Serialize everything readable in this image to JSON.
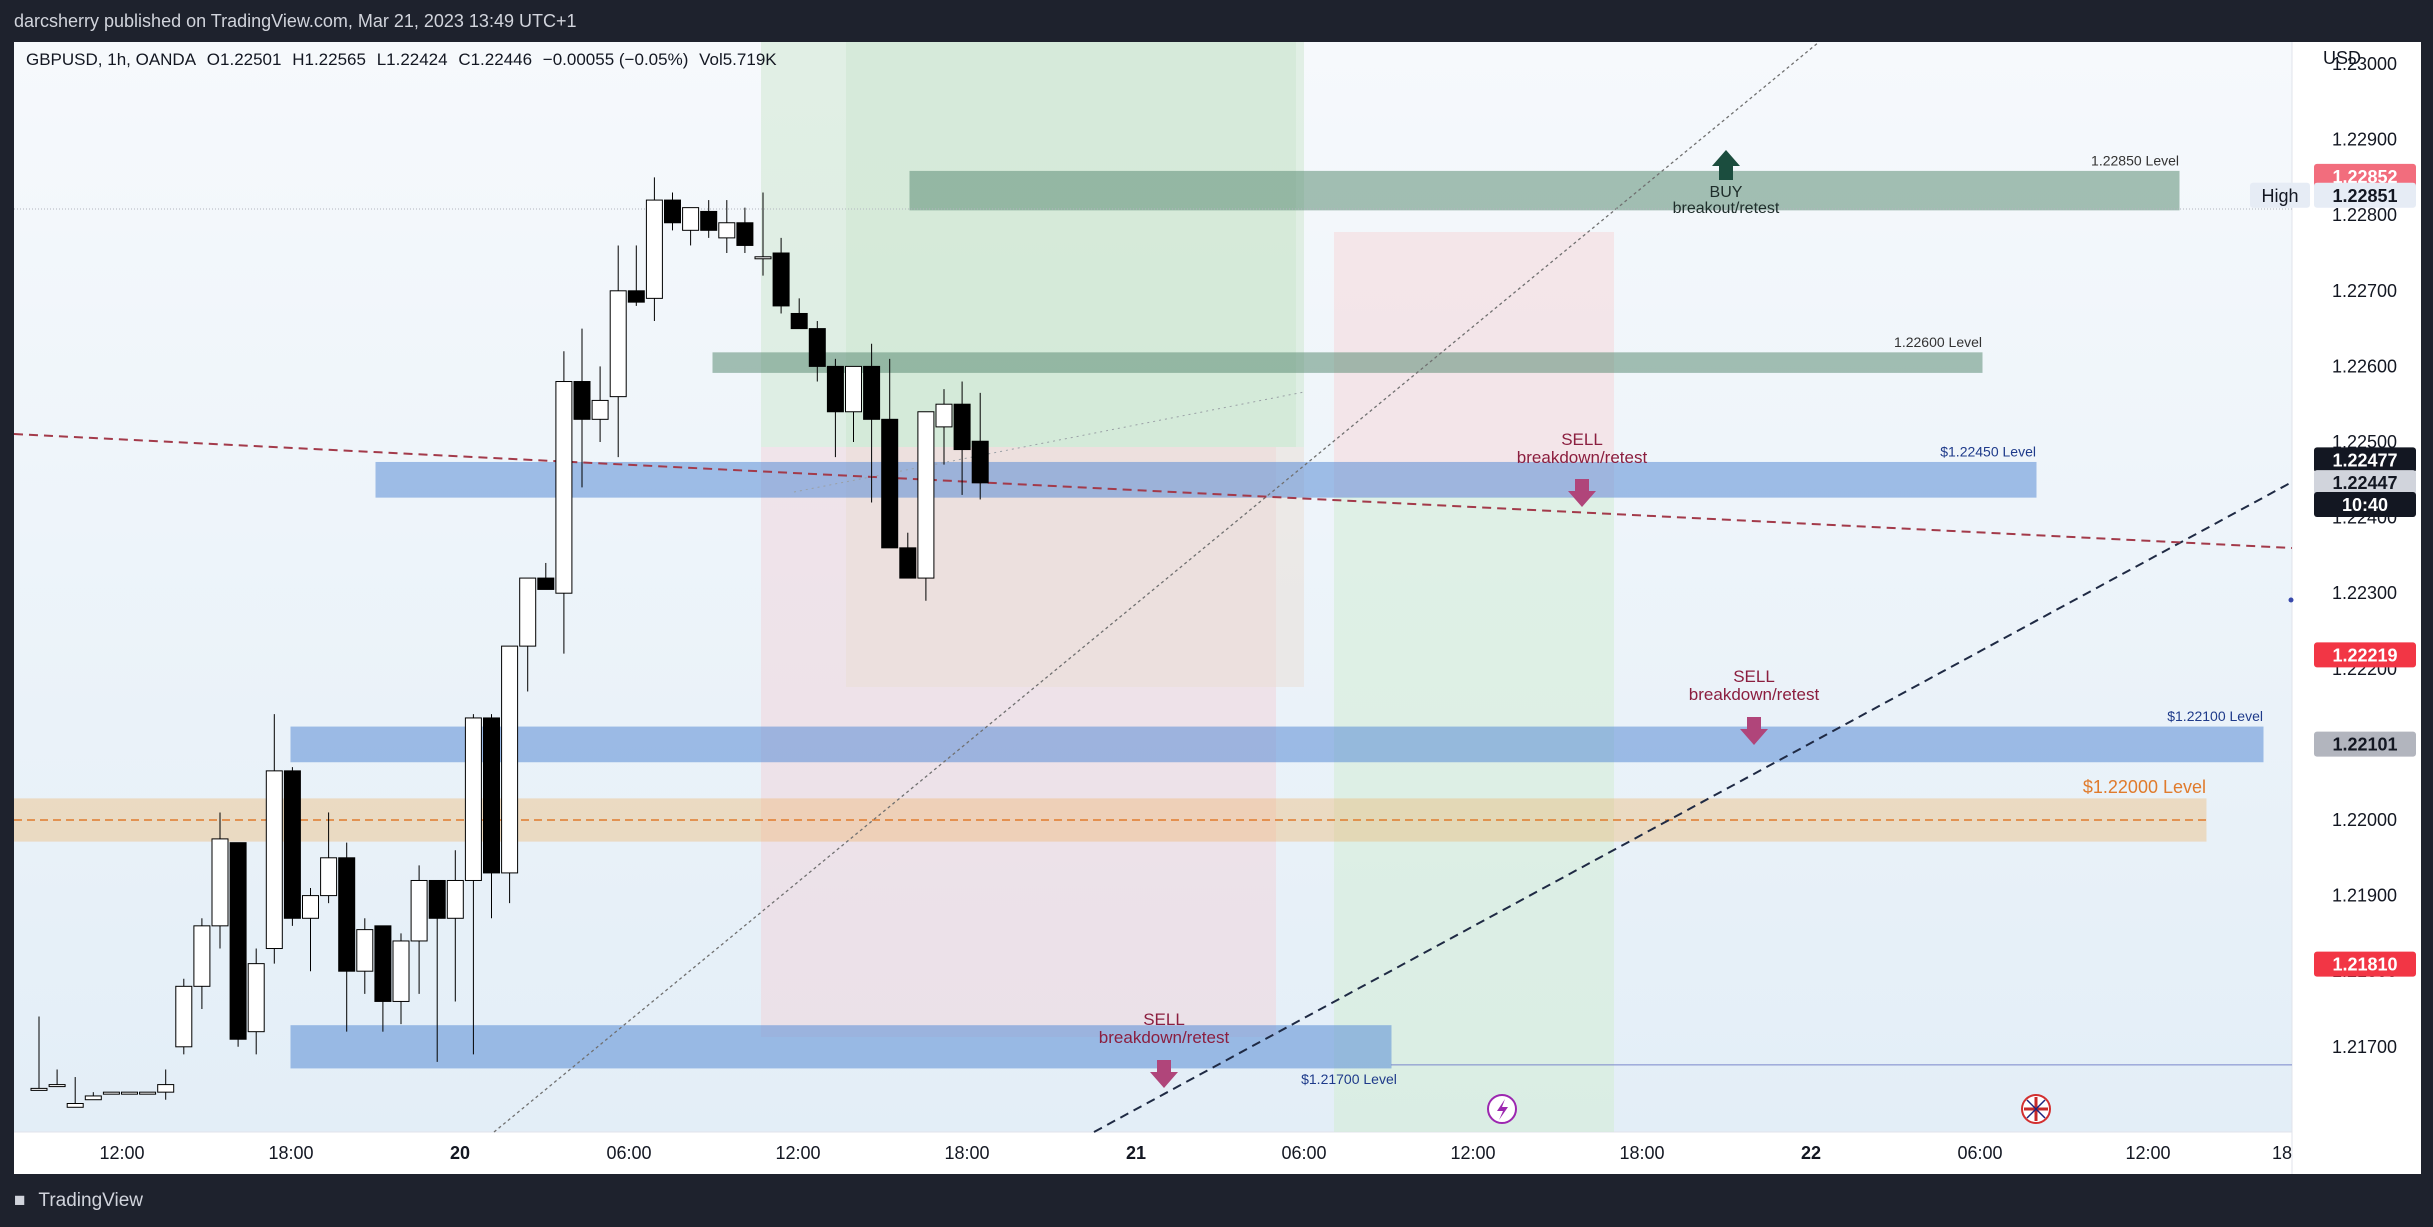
{
  "header": {
    "publish_line": "darcsherry published on TradingView.com, Mar 21, 2023 13:49 UTC+1"
  },
  "legend": {
    "symbol": "GBPUSD, 1h, OANDA",
    "open": "O1.22501",
    "high": "H1.22565",
    "low": "L1.22424",
    "close": "C1.22446",
    "change": "−0.00055 (−0.05%)",
    "volume": "Vol5.719K"
  },
  "footer": {
    "brand": "TradingView"
  },
  "chart_data": {
    "type": "candlestick",
    "currency": "USD",
    "y_range": [
      1.2164,
      1.2315
    ],
    "y_ticks": [
      "1.23000",
      "1.22900",
      "1.22800",
      "1.22700",
      "1.22600",
      "1.22500",
      "1.22400",
      "1.22300",
      "1.22200",
      "1.22100",
      "1.22000",
      "1.21900",
      "1.21800",
      "1.21700"
    ],
    "x_ticks": [
      "12:00",
      "18:00",
      "20",
      "06:00",
      "12:00",
      "18:00",
      "21",
      "06:00",
      "12:00",
      "18:00",
      "22",
      "06:00",
      "12:00",
      "18"
    ],
    "x_ticks_bold": [
      "20",
      "21",
      "22"
    ],
    "candles": [
      {
        "o": 1.21645,
        "h": 1.2174,
        "l": 1.21645,
        "c": 1.21645
      },
      {
        "o": 1.2165,
        "h": 1.2167,
        "l": 1.2165,
        "c": 1.2165
      },
      {
        "o": 1.2162,
        "h": 1.2166,
        "l": 1.2162,
        "c": 1.21625
      },
      {
        "o": 1.2163,
        "h": 1.2164,
        "l": 1.2163,
        "c": 1.21635
      },
      {
        "o": 1.2164,
        "h": 1.2164,
        "l": 1.2164,
        "c": 1.2164
      },
      {
        "o": 1.2164,
        "h": 1.2164,
        "l": 1.2164,
        "c": 1.2164
      },
      {
        "o": 1.2164,
        "h": 1.2164,
        "l": 1.2164,
        "c": 1.2164
      },
      {
        "o": 1.2164,
        "h": 1.2167,
        "l": 1.2163,
        "c": 1.2165
      },
      {
        "o": 1.217,
        "h": 1.2179,
        "l": 1.2169,
        "c": 1.2178
      },
      {
        "o": 1.2178,
        "h": 1.2187,
        "l": 1.2175,
        "c": 1.2186
      },
      {
        "o": 1.2186,
        "h": 1.2201,
        "l": 1.2183,
        "c": 1.21975
      },
      {
        "o": 1.2197,
        "h": 1.2197,
        "l": 1.217,
        "c": 1.2171
      },
      {
        "o": 1.2172,
        "h": 1.2183,
        "l": 1.2169,
        "c": 1.2181
      },
      {
        "o": 1.2183,
        "h": 1.2214,
        "l": 1.2181,
        "c": 1.22065
      },
      {
        "o": 1.22065,
        "h": 1.2207,
        "l": 1.2186,
        "c": 1.2187
      },
      {
        "o": 1.2187,
        "h": 1.2191,
        "l": 1.218,
        "c": 1.219
      },
      {
        "o": 1.219,
        "h": 1.2201,
        "l": 1.2189,
        "c": 1.2195
      },
      {
        "o": 1.2195,
        "h": 1.2197,
        "l": 1.2172,
        "c": 1.218
      },
      {
        "o": 1.218,
        "h": 1.2187,
        "l": 1.2177,
        "c": 1.21855
      },
      {
        "o": 1.2186,
        "h": 1.2186,
        "l": 1.2172,
        "c": 1.2176
      },
      {
        "o": 1.2176,
        "h": 1.2185,
        "l": 1.2173,
        "c": 1.2184
      },
      {
        "o": 1.2184,
        "h": 1.2194,
        "l": 1.2177,
        "c": 1.2192
      },
      {
        "o": 1.2192,
        "h": 1.2192,
        "l": 1.2168,
        "c": 1.2187
      },
      {
        "o": 1.2187,
        "h": 1.2196,
        "l": 1.2176,
        "c": 1.2192
      },
      {
        "o": 1.2192,
        "h": 1.2214,
        "l": 1.2169,
        "c": 1.22135
      },
      {
        "o": 1.22135,
        "h": 1.2214,
        "l": 1.2187,
        "c": 1.2193
      },
      {
        "o": 1.2193,
        "h": 1.2223,
        "l": 1.2189,
        "c": 1.2223
      },
      {
        "o": 1.2223,
        "h": 1.2232,
        "l": 1.2217,
        "c": 1.2232
      },
      {
        "o": 1.2232,
        "h": 1.2234,
        "l": 1.2231,
        "c": 1.22305
      },
      {
        "o": 1.223,
        "h": 1.2262,
        "l": 1.2222,
        "c": 1.2258
      },
      {
        "o": 1.2258,
        "h": 1.2265,
        "l": 1.2244,
        "c": 1.2253
      },
      {
        "o": 1.2253,
        "h": 1.226,
        "l": 1.225,
        "c": 1.22555
      },
      {
        "o": 1.2256,
        "h": 1.2276,
        "l": 1.2248,
        "c": 1.227
      },
      {
        "o": 1.227,
        "h": 1.2276,
        "l": 1.2268,
        "c": 1.22685
      },
      {
        "o": 1.2269,
        "h": 1.2285,
        "l": 1.2266,
        "c": 1.2282
      },
      {
        "o": 1.2282,
        "h": 1.2283,
        "l": 1.2278,
        "c": 1.2279
      },
      {
        "o": 1.2278,
        "h": 1.2281,
        "l": 1.2276,
        "c": 1.2281
      },
      {
        "o": 1.22805,
        "h": 1.2282,
        "l": 1.2277,
        "c": 1.2278
      },
      {
        "o": 1.2277,
        "h": 1.2282,
        "l": 1.2275,
        "c": 1.2279
      },
      {
        "o": 1.2279,
        "h": 1.2281,
        "l": 1.2275,
        "c": 1.2276
      },
      {
        "o": 1.22745,
        "h": 1.2283,
        "l": 1.2272,
        "c": 1.22745
      },
      {
        "o": 1.2275,
        "h": 1.2277,
        "l": 1.2267,
        "c": 1.2268
      },
      {
        "o": 1.2267,
        "h": 1.2269,
        "l": 1.2265,
        "c": 1.2265
      },
      {
        "o": 1.2265,
        "h": 1.2266,
        "l": 1.2258,
        "c": 1.226
      },
      {
        "o": 1.226,
        "h": 1.2261,
        "l": 1.2248,
        "c": 1.2254
      },
      {
        "o": 1.2254,
        "h": 1.226,
        "l": 1.225,
        "c": 1.226
      },
      {
        "o": 1.226,
        "h": 1.2263,
        "l": 1.2242,
        "c": 1.2253
      },
      {
        "o": 1.2253,
        "h": 1.2261,
        "l": 1.2236,
        "c": 1.2236
      },
      {
        "o": 1.2236,
        "h": 1.2238,
        "l": 1.2232,
        "c": 1.2232
      },
      {
        "o": 1.2232,
        "h": 1.2254,
        "l": 1.2229,
        "c": 1.2254
      },
      {
        "o": 1.2252,
        "h": 1.2257,
        "l": 1.2247,
        "c": 1.2255
      },
      {
        "o": 1.2255,
        "h": 1.2258,
        "l": 1.2243,
        "c": 1.2249
      },
      {
        "o": 1.22501,
        "h": 1.22565,
        "l": 1.22424,
        "c": 1.22446
      }
    ],
    "candle_first_x": 25,
    "candle_spacing": 18.1,
    "levels": [
      {
        "label": "1.22850 Level",
        "price": 1.2285,
        "band": [
          1.22815,
          1.2285
        ],
        "color": "#5f8f78"
      },
      {
        "label": "1.22600 Level",
        "price": 1.226,
        "band": [
          1.226,
          1.2261
        ],
        "color": "#5f8f78"
      },
      {
        "label": "$1.22450 Level",
        "price": 1.2245,
        "band": [
          1.22435,
          1.22465
        ],
        "color": "#5b8ed6"
      },
      {
        "label": "$1.22100 Level",
        "price": 1.221,
        "band": [
          1.22085,
          1.22115
        ],
        "color": "#5b8ed6"
      },
      {
        "label": "$1.22000 Level",
        "price": 1.22,
        "band": [
          1.2198,
          1.2202
        ],
        "color": "#f0b060"
      },
      {
        "label": "$1.21700 Level",
        "price": 1.217,
        "band": [
          1.2168,
          1.2172
        ],
        "color": "#5b8ed6"
      }
    ],
    "annotations": [
      {
        "text1": "BUY",
        "text2": "breakout/retest",
        "color": "#1b4d3e",
        "direction": "up"
      },
      {
        "text1": "SELL",
        "text2": "breakdown/retest",
        "color": "#8b1e3f",
        "direction": "down"
      },
      {
        "text1": "SELL",
        "text2": "breakdown/retest",
        "color": "#8b1e3f",
        "direction": "down"
      },
      {
        "text1": "SELL",
        "text2": "breakdown/retest",
        "color": "#8b1e3f",
        "direction": "down"
      }
    ],
    "price_labels": [
      {
        "text": "1.22852",
        "price": 1.22852,
        "bg": "#f26d7d",
        "fg": "#ffffff"
      },
      {
        "text": "1.22851",
        "price": 1.22827,
        "bg": "#e6ecf5",
        "fg": "#131722",
        "prefix": "High"
      },
      {
        "text": "1.22477",
        "price": 1.22477,
        "bg": "#131722",
        "fg": "#ffffff"
      },
      {
        "text": "1.22447",
        "price": 1.22447,
        "bg": "#d1d4dc",
        "fg": "#131722"
      },
      {
        "text": "10:40",
        "price": 1.22418,
        "bg": "#131722",
        "fg": "#ffffff"
      },
      {
        "text": "1.22219",
        "price": 1.22219,
        "bg": "#f23645",
        "fg": "#ffffff"
      },
      {
        "text": "1.22101",
        "price": 1.22101,
        "bg": "#b2b5be",
        "fg": "#131722"
      },
      {
        "text": "1.21810",
        "price": 1.2181,
        "bg": "#f23645",
        "fg": "#ffffff"
      }
    ],
    "grid": false
  }
}
